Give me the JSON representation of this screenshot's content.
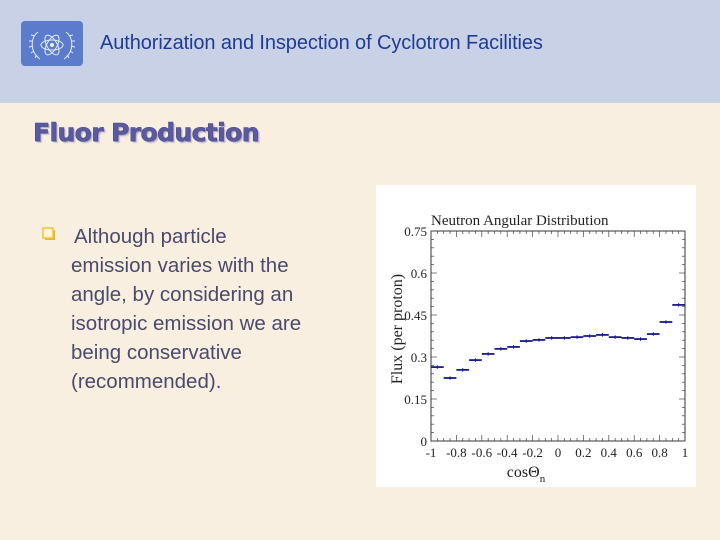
{
  "header": {
    "title": "Authorization and Inspection of Cyclotron Facilities",
    "logo": "iaea-atom-laurel-logo",
    "background_color": "#c9d1e6",
    "title_color": "#1e3c96"
  },
  "slide": {
    "title": "Fluor Production",
    "bullets": [
      {
        "icon": "hollow-square-bullet-icon",
        "lines": [
          "Although particle",
          "emission varies with the",
          "angle, by considering an",
          "isotropic emission we are",
          "being conservative",
          "(recommended)."
        ]
      }
    ]
  },
  "chart_data": {
    "type": "line",
    "style": "histogram-step-with-error-bars",
    "title": "Neutron Angular Distribution",
    "xlabel": "cosΘ_n",
    "xlabel_main": "cosΘ",
    "xlabel_sub": "n",
    "ylabel": "Flux (per proton)",
    "xlim": [
      -1,
      1
    ],
    "ylim": [
      0,
      0.75
    ],
    "x_ticks": [
      "-1",
      "-0.8",
      "-0.6",
      "-0.4",
      "-0.2",
      "0",
      "0.2",
      "0.4",
      "0.6",
      "0.8",
      "1"
    ],
    "y_ticks": [
      "0",
      "0.15",
      "0.3",
      "0.45",
      "0.6",
      "0.75"
    ],
    "grid": false,
    "legend": null,
    "series_color": "#1a1a8c",
    "bin_width": 0.1,
    "x": [
      -0.95,
      -0.85,
      -0.75,
      -0.65,
      -0.55,
      -0.45,
      -0.35,
      -0.25,
      -0.15,
      -0.05,
      0.05,
      0.15,
      0.25,
      0.35,
      0.45,
      0.55,
      0.65,
      0.75,
      0.85,
      0.95
    ],
    "series": [
      {
        "name": "Flux",
        "values": [
          0.264,
          0.225,
          0.254,
          0.289,
          0.311,
          0.329,
          0.336,
          0.357,
          0.361,
          0.368,
          0.368,
          0.371,
          0.375,
          0.379,
          0.371,
          0.368,
          0.364,
          0.382,
          0.425,
          0.486
        ]
      }
    ]
  }
}
